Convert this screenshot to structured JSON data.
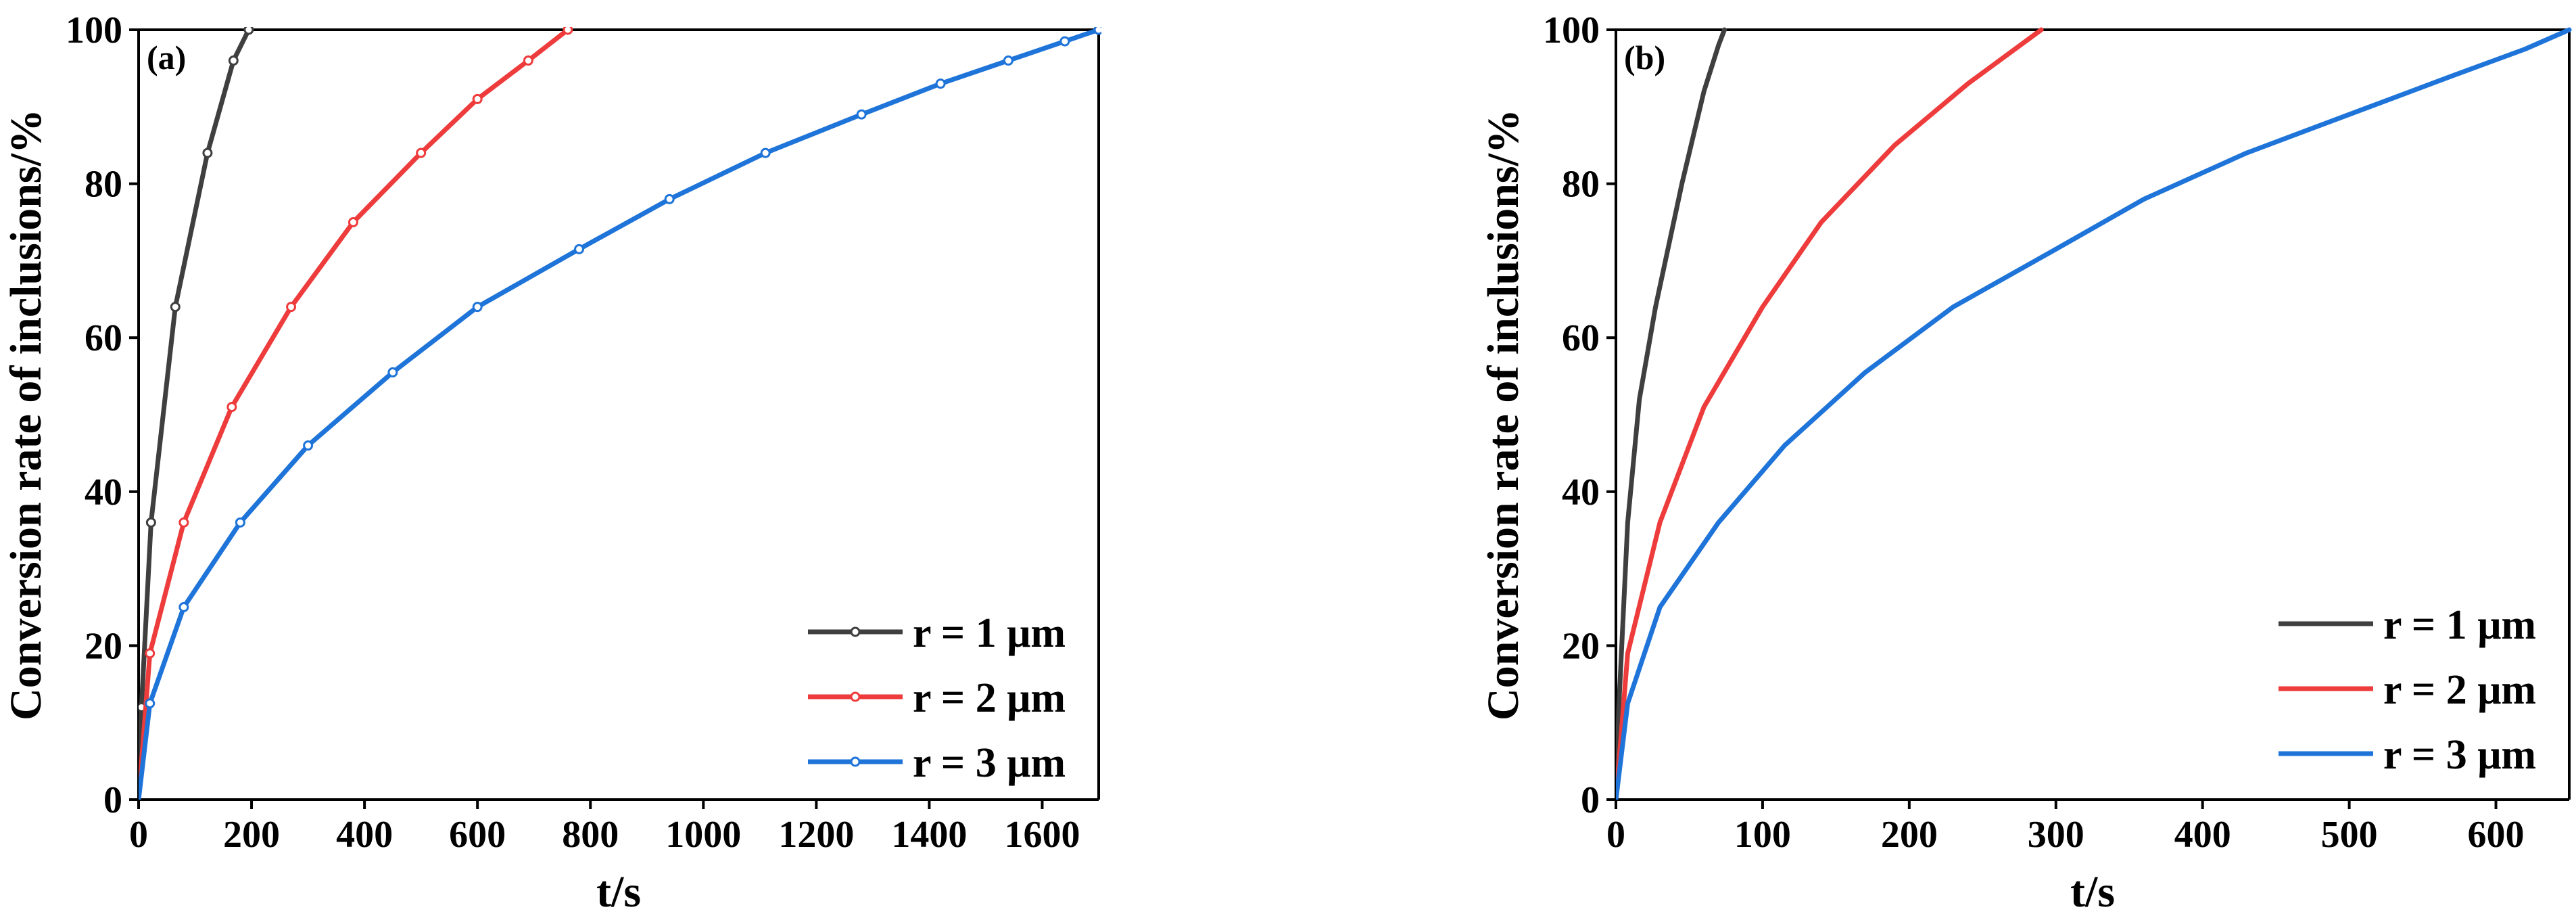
{
  "chart_data": [
    {
      "type": "line",
      "panel_label": "(a)",
      "xlabel": "t/s",
      "ylabel": "Conversion rate of inclusions/%",
      "xlim": [
        0,
        1700
      ],
      "ylim": [
        0,
        100
      ],
      "xticks": [
        0,
        200,
        400,
        600,
        800,
        1000,
        1200,
        1400,
        1600
      ],
      "yticks": [
        0,
        20,
        40,
        60,
        80,
        100
      ],
      "markers": true,
      "legend_position": "bottom-right",
      "series": [
        {
          "name": "r = 1 μm",
          "color": "#3f3f3f",
          "x": [
            0,
            5,
            22,
            65,
            122,
            168,
            195
          ],
          "y": [
            0,
            12,
            36,
            64,
            84,
            96,
            100
          ]
        },
        {
          "name": "r = 2 μm",
          "color": "#ee3b3b",
          "x": [
            0,
            20,
            80,
            165,
            270,
            380,
            500,
            600,
            690,
            760
          ],
          "y": [
            0,
            19,
            36,
            51,
            64,
            75,
            84,
            91,
            96,
            100
          ]
        },
        {
          "name": "r = 3 μm",
          "color": "#1e74d8",
          "x": [
            0,
            20,
            80,
            180,
            300,
            450,
            600,
            780,
            940,
            1110,
            1280,
            1420,
            1540,
            1640,
            1700
          ],
          "y": [
            0,
            12.5,
            25,
            36,
            46,
            55.5,
            64,
            71.5,
            78,
            84,
            89,
            93,
            96,
            98.5,
            100
          ]
        }
      ]
    },
    {
      "type": "line",
      "panel_label": "(b)",
      "xlabel": "t/s",
      "ylabel": "Conversion rate of inclusions/%",
      "xlim": [
        0,
        650
      ],
      "ylim": [
        0,
        100
      ],
      "xticks": [
        0,
        100,
        200,
        300,
        400,
        500,
        600
      ],
      "yticks": [
        0,
        20,
        40,
        60,
        80,
        100
      ],
      "markers": false,
      "legend_position": "bottom-right",
      "series": [
        {
          "name": "r = 1 μm",
          "color": "#3f3f3f",
          "x": [
            0,
            2,
            8,
            16,
            27,
            45,
            60,
            70,
            74
          ],
          "y": [
            0,
            12,
            36,
            52,
            64,
            80,
            92,
            98,
            100
          ]
        },
        {
          "name": "r = 2 μm",
          "color": "#ee3b3b",
          "x": [
            0,
            8,
            30,
            60,
            100,
            140,
            190,
            240,
            290
          ],
          "y": [
            0,
            19,
            36,
            51,
            64,
            75,
            85,
            93,
            100
          ]
        },
        {
          "name": "r = 3 μm",
          "color": "#1e74d8",
          "x": [
            0,
            8,
            30,
            70,
            115,
            170,
            230,
            300,
            360,
            430,
            500,
            570,
            620,
            650
          ],
          "y": [
            0,
            12.5,
            25,
            36,
            46,
            55.5,
            64,
            71.5,
            78,
            84,
            89,
            94,
            97.5,
            100
          ]
        }
      ]
    }
  ]
}
